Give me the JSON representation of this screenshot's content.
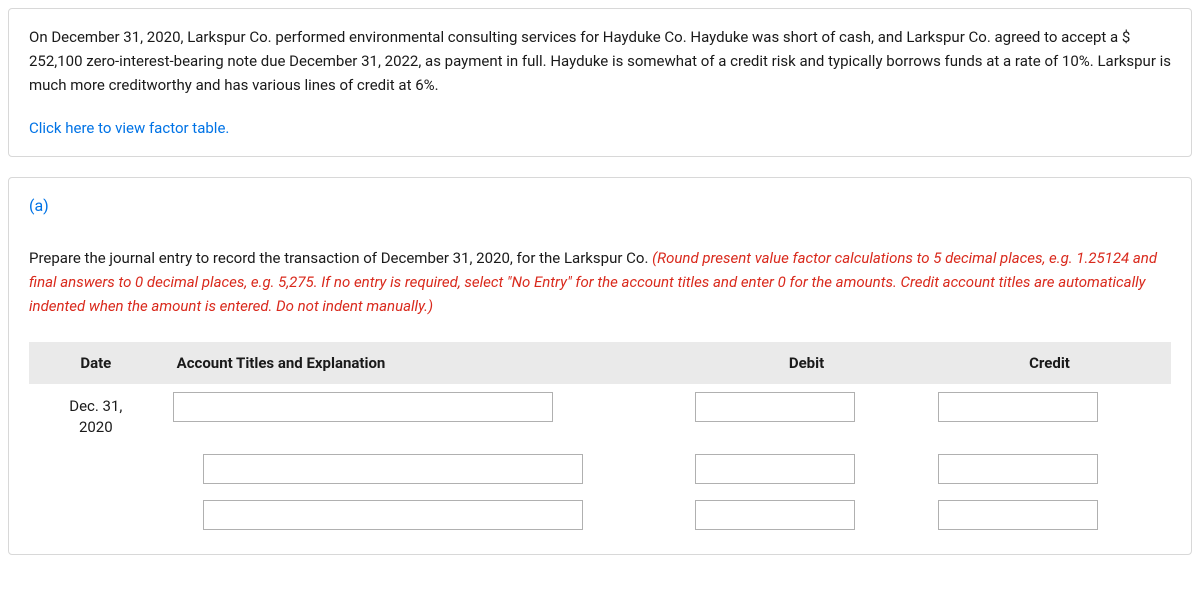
{
  "problem": {
    "text": "On December 31, 2020, Larkspur Co. performed environmental consulting services for Hayduke Co. Hayduke was short of cash, and Larkspur Co. agreed to accept a $ 252,100 zero-interest-bearing note due December 31, 2022, as payment in full. Hayduke is somewhat of a credit risk and typically borrows funds at a rate of  10%. Larkspur is much more creditworthy and has various lines of credit at 6%.",
    "link_text": "Click here to view factor table."
  },
  "part": {
    "label": "(a)",
    "instruction_plain": "Prepare the journal entry to record the transaction of December 31, 2020, for the Larkspur Co. ",
    "instruction_hint": "(Round present value factor calculations to 5 decimal places, e.g. 1.25124 and final answers to 0 decimal places, e.g. 5,275. If no entry is required, select \"No Entry\" for the account titles and enter 0 for the amounts. Credit account titles are automatically indented when the amount is entered. Do not indent manually.)"
  },
  "table": {
    "headers": {
      "date": "Date",
      "account": "Account Titles and Explanation",
      "debit": "Debit",
      "credit": "Credit"
    },
    "rows": [
      {
        "date_line1": "Dec. 31,",
        "date_line2": "2020",
        "account": "",
        "debit": "",
        "credit": ""
      },
      {
        "date_line1": "",
        "date_line2": "",
        "account": "",
        "debit": "",
        "credit": ""
      },
      {
        "date_line1": "",
        "date_line2": "",
        "account": "",
        "debit": "",
        "credit": ""
      }
    ]
  },
  "style": {
    "link_color": "#0073e6",
    "hint_color": "#d9291c",
    "header_bg": "#eaeaea",
    "border_color": "#d8d8d8",
    "input_border": "#b0b0b0"
  }
}
